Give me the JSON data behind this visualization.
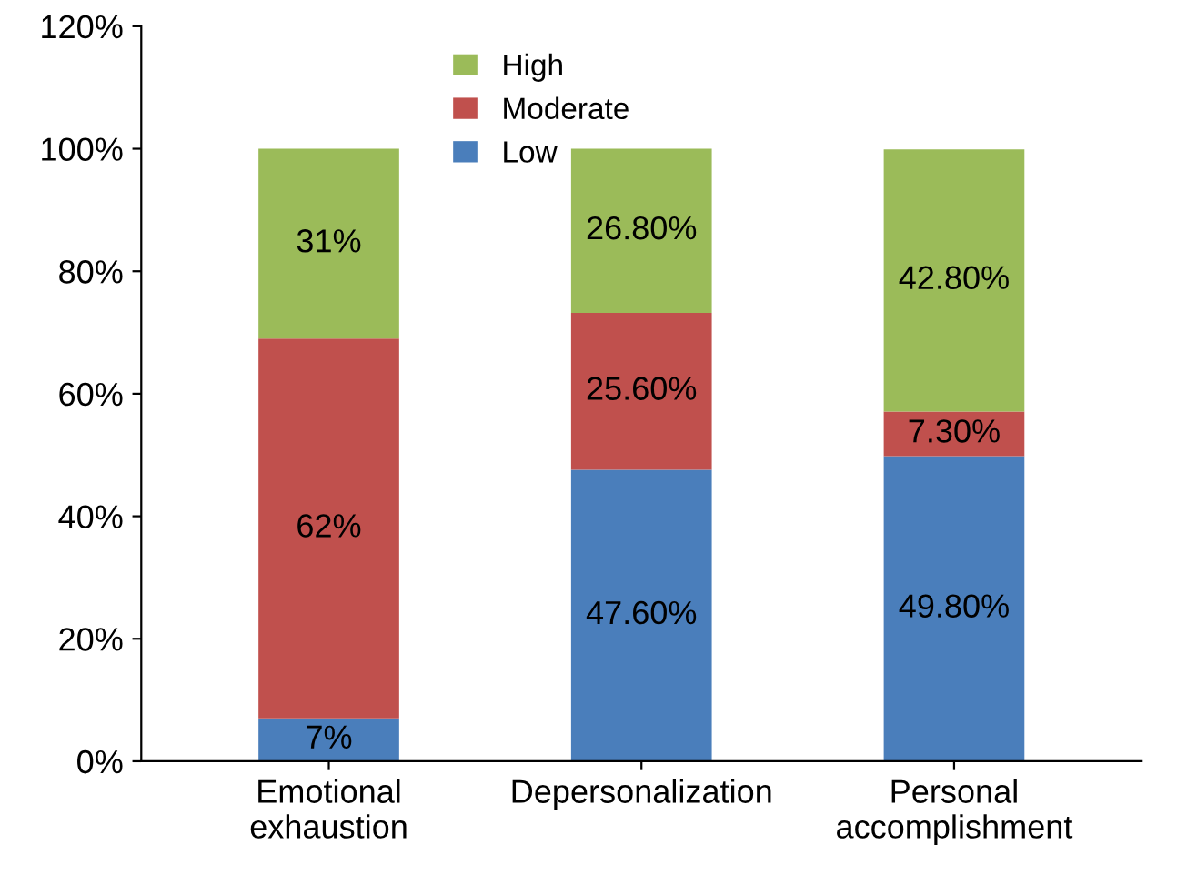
{
  "chart_data": {
    "type": "bar",
    "stacked": true,
    "categories": [
      "Emotional\nexhaustion",
      "Depersonalization",
      "Personal\naccomplishment"
    ],
    "series": [
      {
        "name": "Low",
        "color": "#4a7ebb",
        "values": [
          7,
          47.6,
          49.8
        ],
        "value_labels": [
          "7%",
          "47.60%",
          "49.80%"
        ]
      },
      {
        "name": "Moderate",
        "color": "#c0504d",
        "values": [
          62,
          25.6,
          7.3
        ],
        "value_labels": [
          "62%",
          "25.60%",
          "7.30%"
        ]
      },
      {
        "name": "High",
        "color": "#9bbb59",
        "values": [
          31,
          26.8,
          42.8
        ],
        "value_labels": [
          "31%",
          "26.80%",
          "42.80%"
        ]
      }
    ],
    "ylim": [
      0,
      120
    ],
    "yticks": [
      {
        "value": 0,
        "label": "0%"
      },
      {
        "value": 20,
        "label": "20%"
      },
      {
        "value": 40,
        "label": "40%"
      },
      {
        "value": 60,
        "label": "60%"
      },
      {
        "value": 80,
        "label": "80%"
      },
      {
        "value": 100,
        "label": "100%"
      },
      {
        "value": 120,
        "label": "120%"
      }
    ],
    "grid": false,
    "legend": "top"
  }
}
